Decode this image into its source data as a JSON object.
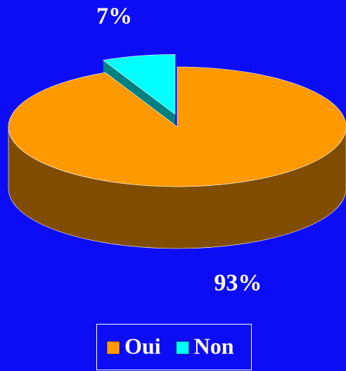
{
  "chart_data": {
    "type": "pie",
    "categories": [
      "Oui",
      "Non"
    ],
    "values": [
      93,
      7
    ],
    "value_labels": [
      "93%",
      "7%"
    ],
    "colors": [
      "#ff9900",
      "#00ffff"
    ],
    "legend": "bottom"
  }
}
